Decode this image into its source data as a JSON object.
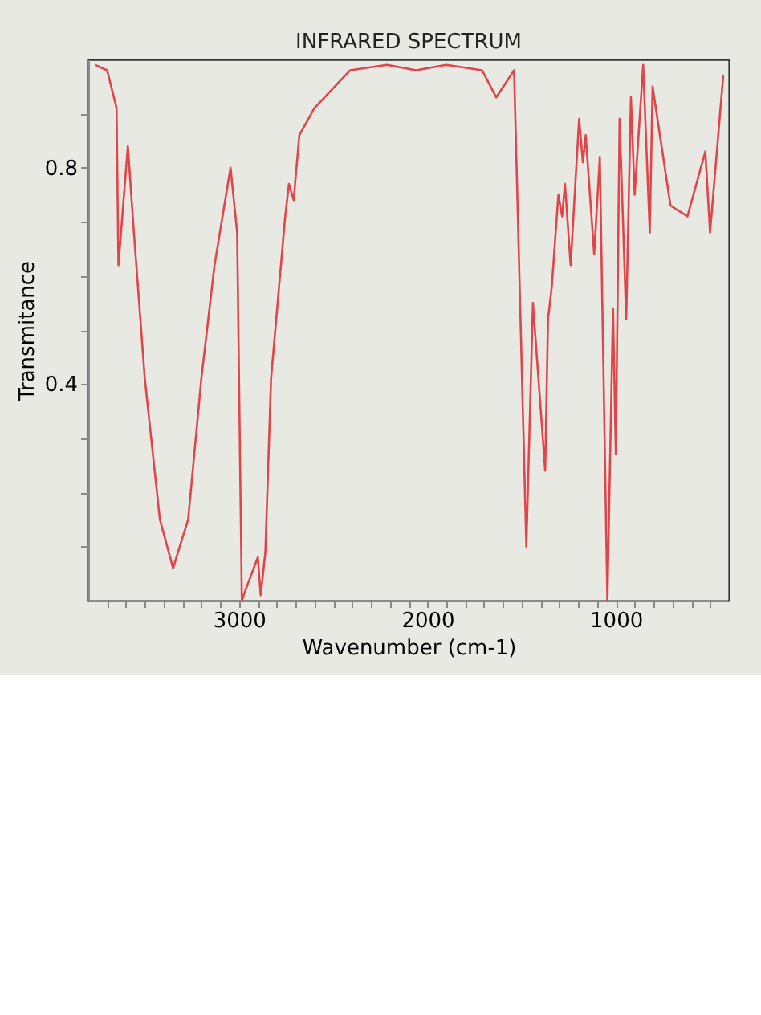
{
  "chart_data": {
    "type": "line",
    "title": "INFRARED SPECTRUM",
    "xlabel": "Wavenumber (cm-1)",
    "ylabel": "Transmitance",
    "x": [
      3765,
      3700,
      3650,
      3640,
      3590,
      3560,
      3500,
      3420,
      3350,
      3270,
      3200,
      3130,
      3045,
      3010,
      2985,
      2965,
      2900,
      2885,
      2860,
      2830,
      2755,
      2735,
      2710,
      2680,
      2600,
      2410,
      2215,
      2060,
      1900,
      1710,
      1635,
      1540,
      1475,
      1440,
      1375,
      1360,
      1340,
      1305,
      1285,
      1270,
      1240,
      1195,
      1175,
      1160,
      1115,
      1085,
      1045,
      1015,
      1000,
      980,
      945,
      920,
      900,
      855,
      820,
      805,
      710,
      620,
      525,
      500,
      430
    ],
    "series": [
      {
        "color": "#e0454a",
        "values": [
          0.99,
          0.98,
          0.91,
          0.62,
          0.84,
          0.69,
          0.41,
          0.15,
          0.06,
          0.15,
          0.41,
          0.62,
          0.8,
          0.68,
          0.0,
          0.02,
          0.08,
          0.01,
          0.09,
          0.41,
          0.71,
          0.77,
          0.74,
          0.86,
          0.91,
          0.98,
          0.99,
          0.98,
          0.99,
          0.98,
          0.93,
          0.98,
          0.1,
          0.55,
          0.24,
          0.52,
          0.58,
          0.75,
          0.71,
          0.77,
          0.62,
          0.89,
          0.81,
          0.86,
          0.64,
          0.82,
          0.0,
          0.54,
          0.27,
          0.89,
          0.52,
          0.93,
          0.75,
          0.99,
          0.68,
          0.95,
          0.73,
          0.71,
          0.83,
          0.68,
          0.97
        ]
      }
    ],
    "xlim": [
      3800,
      400
    ],
    "xticks": [
      {
        "value": 3700,
        "label": null
      },
      {
        "value": 3600,
        "label": null
      },
      {
        "value": 3500,
        "label": null
      },
      {
        "value": 3400,
        "label": null
      },
      {
        "value": 3300,
        "label": null
      },
      {
        "value": 3200,
        "label": null
      },
      {
        "value": 3100,
        "label": null
      },
      3000,
      {
        "value": 2900,
        "label": null
      },
      {
        "value": 2800,
        "label": null
      },
      {
        "value": 2700,
        "label": null
      },
      {
        "value": 2600,
        "label": null
      },
      {
        "value": 2500,
        "label": null
      },
      {
        "value": 2400,
        "label": null
      },
      {
        "value": 2300,
        "label": null
      },
      {
        "value": 2200,
        "label": null
      },
      {
        "value": 2100,
        "label": null
      },
      2000,
      {
        "value": 1900,
        "label": null
      },
      {
        "value": 1800,
        "label": null
      },
      {
        "value": 1700,
        "label": null
      },
      {
        "value": 1600,
        "label": null
      },
      {
        "value": 1500,
        "label": null
      },
      {
        "value": 1400,
        "label": null
      },
      {
        "value": 1300,
        "label": null
      },
      {
        "value": 1200,
        "label": null
      },
      {
        "value": 1100,
        "label": null
      },
      1000,
      {
        "value": 900,
        "label": null
      },
      {
        "value": 800,
        "label": null
      },
      {
        "value": 700,
        "label": null
      },
      {
        "value": 600,
        "label": null
      },
      {
        "value": 500,
        "label": null
      }
    ],
    "ylim": [
      0,
      1
    ],
    "yticks": [
      {
        "value": 0.1,
        "label": null
      },
      {
        "value": 0.2,
        "label": null
      },
      {
        "value": 0.3,
        "label": null
      },
      0.4,
      {
        "value": 0.5,
        "label": null
      },
      {
        "value": 0.6,
        "label": null
      },
      {
        "value": 0.7,
        "label": null
      },
      0.8,
      {
        "value": 0.9,
        "label": null
      }
    ],
    "grid": false,
    "marker": "none",
    "line_style": "solid"
  }
}
